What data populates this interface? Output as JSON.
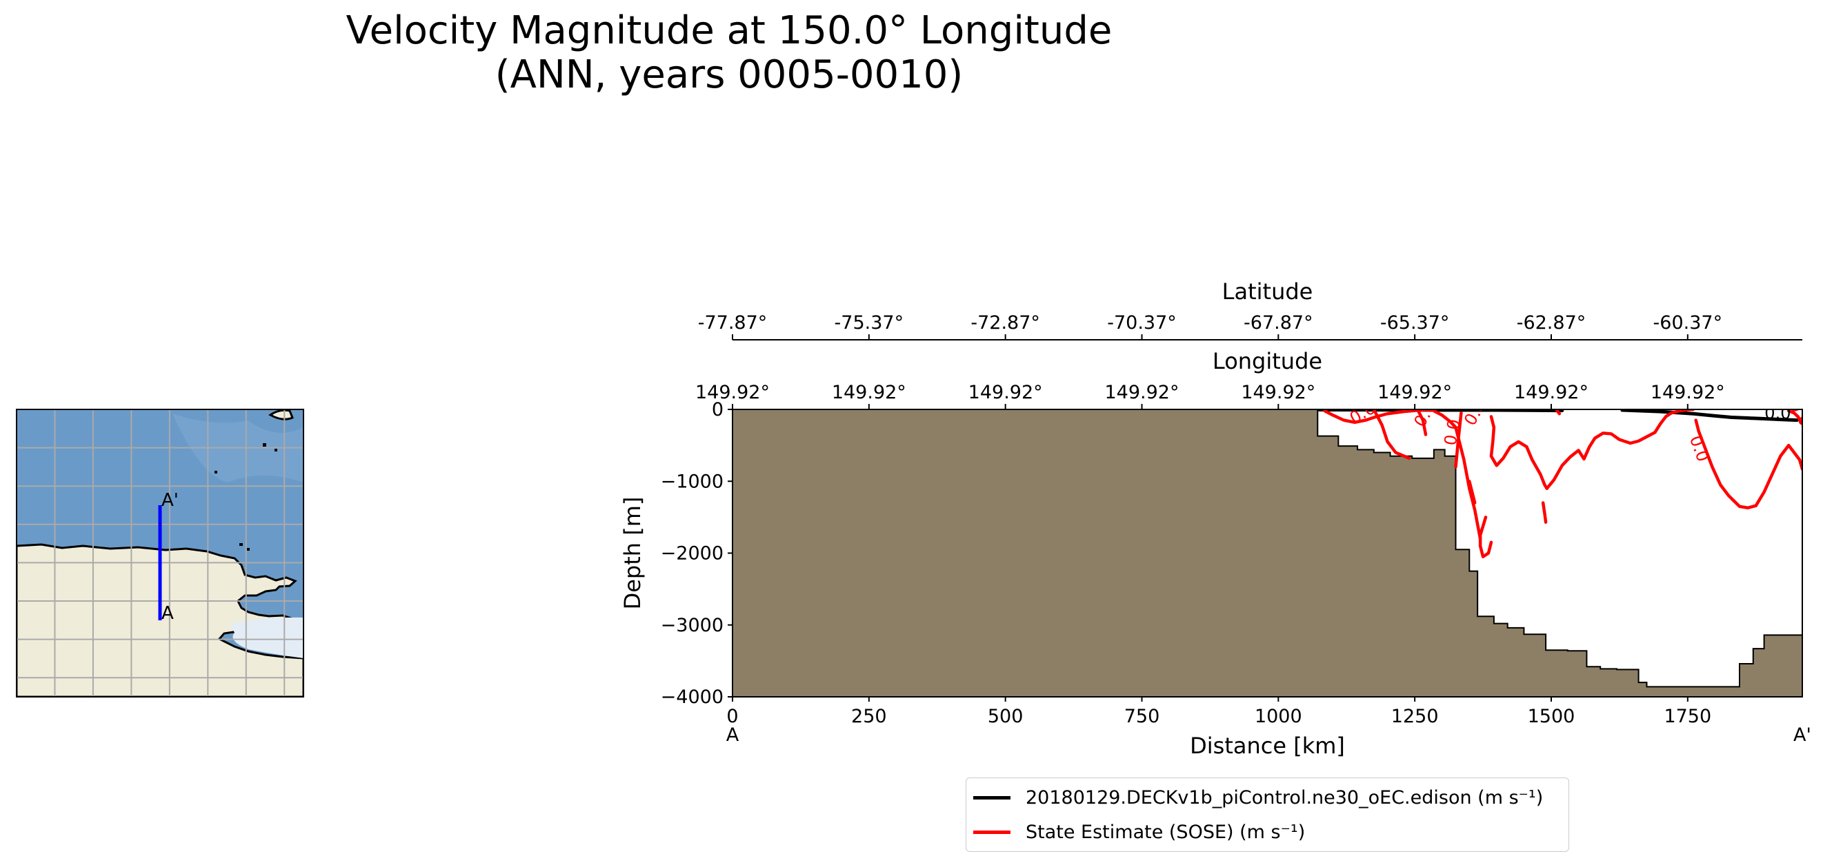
{
  "title_line1": "Velocity Magnitude at 150.0° Longitude",
  "title_line2": "(ANN, years 0005-0010)",
  "chart_data": [
    {
      "type": "line",
      "panel": "section",
      "xlabel": "Distance [km]",
      "ylabel": "Depth [m]",
      "xlim": [
        0,
        1960
      ],
      "ylim": [
        -4000,
        0
      ],
      "xticks": [
        0,
        250,
        500,
        750,
        1000,
        1250,
        1500,
        1750
      ],
      "xtick_labels": [
        "0",
        "250",
        "500",
        "750",
        "1000",
        "1250",
        "1500",
        "1750"
      ],
      "yticks": [
        0,
        -1000,
        -2000,
        -3000,
        -4000
      ],
      "ytick_labels": [
        "0",
        "−1000",
        "−2000",
        "−3000",
        "−4000"
      ],
      "end_labels": [
        "A",
        "A'"
      ],
      "top_axis_1": {
        "label": "Latitude",
        "tick_labels": [
          "-77.87°",
          "-75.37°",
          "-72.87°",
          "-70.37°",
          "-67.87°",
          "-65.37°",
          "-62.87°",
          "-60.37°"
        ]
      },
      "top_axis_2": {
        "label": "Longitude",
        "tick_labels": [
          "149.92°",
          "149.92°",
          "149.92°",
          "149.92°",
          "149.92°",
          "149.92°",
          "149.92°",
          "149.92°"
        ]
      },
      "contour_labels": [
        "0.0",
        "0.0",
        "0.0",
        "0.0",
        "0.0",
        "0.0",
        "0.0"
      ],
      "bathymetry": {
        "color": "#8c7f65",
        "x": [
          0,
          1072,
          1072,
          1110,
          1110,
          1145,
          1145,
          1175,
          1175,
          1205,
          1205,
          1245,
          1245,
          1285,
          1285,
          1305,
          1305,
          1325,
          1325,
          1350,
          1350,
          1365,
          1365,
          1395,
          1395,
          1420,
          1420,
          1450,
          1450,
          1490,
          1490,
          1530,
          1530,
          1565,
          1565,
          1590,
          1590,
          1620,
          1620,
          1660,
          1660,
          1675,
          1675,
          1700,
          1700,
          1720,
          1720,
          1755,
          1755,
          1790,
          1790,
          1820,
          1820,
          1845,
          1845,
          1870,
          1870,
          1890,
          1890,
          1910,
          1910,
          1960
        ],
        "depth": [
          0,
          0,
          -370,
          -370,
          -510,
          -510,
          -560,
          -560,
          -600,
          -600,
          -650,
          -650,
          -680,
          -680,
          -560,
          -560,
          -650,
          -650,
          -1950,
          -1950,
          -2250,
          -2250,
          -2880,
          -2880,
          -2980,
          -2980,
          -3040,
          -3040,
          -3130,
          -3130,
          -3350,
          -3350,
          -3360,
          -3360,
          -3580,
          -3580,
          -3610,
          -3610,
          -3620,
          -3620,
          -3800,
          -3800,
          -3860,
          -3860,
          -3860,
          -3860,
          -3860,
          -3860,
          -3860,
          -3860,
          -3860,
          -3860,
          -3860,
          -3860,
          -3540,
          -3540,
          -3330,
          -3330,
          -3140,
          -3140,
          -3140,
          -3140
        ]
      },
      "series": [
        {
          "name": "20180129.DECKv1b_piControl.ne30_oEC.edison (m s⁻¹)",
          "color": "#000000",
          "segments": [
            {
              "x": [
                1075,
                1250,
                1400,
                1520
              ],
              "y": [
                -5,
                -8,
                -10,
                -15
              ]
            },
            {
              "x": [
                1630,
                1700,
                1760,
                1800,
                1830,
                1860,
                1890,
                1920,
                1950
              ],
              "y": [
                -10,
                -30,
                -60,
                -90,
                -110,
                -120,
                -130,
                -140,
                -150
              ]
            }
          ]
        },
        {
          "name": "State Estimate (SOSE) (m s⁻¹)",
          "color": "#ff0000",
          "segments": [
            {
              "x": [
                1085,
                1100,
                1120,
                1140,
                1160,
                1180,
                1200,
                1230,
                1260,
                1280
              ],
              "y": [
                -20,
                -80,
                -150,
                -180,
                -150,
                -100,
                -60,
                -30,
                -10,
                -5
              ]
            },
            {
              "x": [
                1175,
                1190,
                1200,
                1215,
                1240
              ],
              "y": [
                0,
                -220,
                -450,
                -600,
                -680
              ]
            },
            {
              "x": [
                1255,
                1265,
                1270
              ],
              "y": [
                0,
                -150,
                -350
              ]
            },
            {
              "x": [
                1285,
                1300,
                1315,
                1325,
                1330,
                1340,
                1350,
                1360,
                1365,
                1370
              ],
              "y": [
                -20,
                -80,
                -170,
                -250,
                -400,
                -700,
                -1100,
                -1400,
                -1600,
                -1800
              ]
            },
            {
              "x": [
                1335,
                1330,
                1325
              ],
              "y": [
                -50,
                -400,
                -800
              ]
            },
            {
              "x": [
                1350,
                1355,
                1360
              ],
              "y": [
                -1000,
                -1150,
                -1300
              ]
            },
            {
              "x": [
                1380,
                1370,
                1370,
                1375,
                1385,
                1390
              ],
              "y": [
                -1500,
                -1750,
                -1900,
                -2050,
                -2000,
                -1850
              ]
            },
            {
              "x": [
                1390,
                1395,
                1393,
                1390,
                1400,
                1412,
                1425,
                1440,
                1455,
                1465,
                1480,
                1488,
                1492
              ],
              "y": [
                -100,
                -250,
                -450,
                -650,
                -780,
                -680,
                -520,
                -450,
                -520,
                -700,
                -900,
                -1050,
                -1100
              ]
            },
            {
              "x": [
                1485,
                1488,
                1490
              ],
              "y": [
                -1300,
                -1450,
                -1570
              ]
            },
            {
              "x": [
                1492,
                1505,
                1520,
                1535,
                1550,
                1560,
                1570,
                1580,
                1595,
                1610,
                1625,
                1645,
                1660,
                1675,
                1690,
                1700,
                1710,
                1720,
                1735,
                1750,
                1760
              ],
              "y": [
                -1100,
                -980,
                -780,
                -660,
                -570,
                -690,
                -520,
                -400,
                -330,
                -340,
                -420,
                -470,
                -440,
                -380,
                -320,
                -200,
                -100,
                -50,
                -20,
                -5,
                0
              ]
            },
            {
              "x": [
                1510,
                1512,
                1515
              ],
              "y": [
                -10,
                -30,
                -60
              ]
            },
            {
              "x": [
                1765,
                1770,
                1780,
                1795,
                1810,
                1825,
                1845,
                1860,
                1875
              ],
              "y": [
                -150,
                -300,
                -500,
                -800,
                -1050,
                -1200,
                -1350,
                -1370,
                -1340
              ]
            },
            {
              "x": [
                1875,
                1890,
                1905,
                1920,
                1935,
                1955,
                1960
              ],
              "y": [
                -1340,
                -1150,
                -900,
                -650,
                -500,
                -700,
                -830
              ]
            },
            {
              "x": [
                1935,
                1945,
                1952,
                1958
              ],
              "y": [
                -20,
                -50,
                -100,
                -180
              ]
            }
          ]
        }
      ],
      "legend_placement": "below"
    },
    {
      "type": "map",
      "panel": "inset",
      "transect_labels": [
        "A",
        "A'"
      ],
      "transect_color": "#0000ff",
      "ocean_color": "#6a9ac8",
      "land_color": "#efecd9",
      "ice_color": "#e4edf6"
    }
  ]
}
